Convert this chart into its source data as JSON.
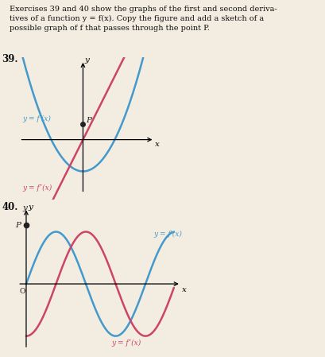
{
  "label39_fp": "y = f′(x)",
  "label39_fpp": "y = f″(x)",
  "label40_fp": "y = f′(x)",
  "label40_fpp": "y = f″(x)",
  "color_blue": "#4499cc",
  "color_pink": "#cc4466",
  "bg_color": "#f2ede0",
  "text_color": "#111111"
}
